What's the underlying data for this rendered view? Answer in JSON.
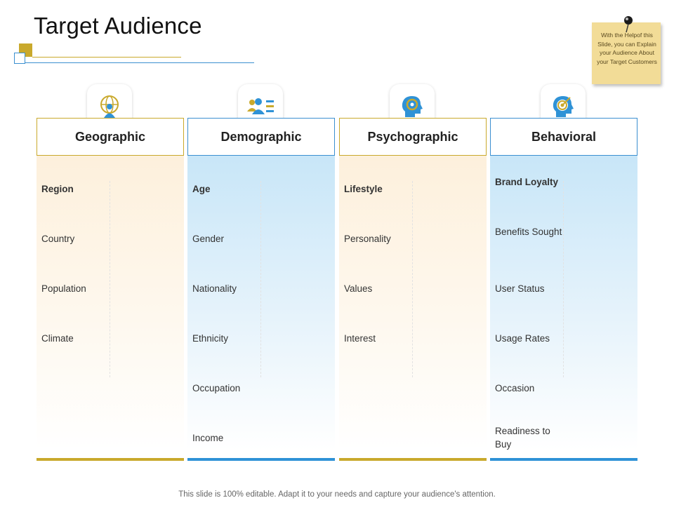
{
  "page": {
    "title": "Target Audience"
  },
  "note": {
    "text": "With the Helpof this Slide, you can Explain your Audience About your Target Customers"
  },
  "columns": [
    {
      "heading": "Geographic",
      "theme": "gold",
      "icon": "globe-person-icon",
      "items": [
        "Region",
        "Country",
        "Population",
        "Climate"
      ]
    },
    {
      "heading": "Demographic",
      "theme": "blue",
      "icon": "people-list-icon",
      "items": [
        "Age",
        "Gender",
        "Nationality",
        "Ethnicity",
        "Occupation",
        "Income"
      ]
    },
    {
      "heading": "Psychographic",
      "theme": "gold",
      "icon": "head-gear-icon",
      "items": [
        "Lifestyle",
        "Personality",
        "Values",
        "Interest"
      ]
    },
    {
      "heading": "Behavioral",
      "theme": "blue",
      "icon": "head-target-icon",
      "items": [
        "Brand Loyalty",
        "Benefits Sought",
        "User Status",
        "Usage Rates",
        "Occasion",
        "Readiness to Buy"
      ]
    }
  ],
  "footer": {
    "text": "This slide is 100% editable. Adapt it to your needs and capture your audience's attention."
  },
  "colors": {
    "gold": "#c9a92c",
    "blue": "#2f92d6",
    "note": "#f2dc97"
  }
}
